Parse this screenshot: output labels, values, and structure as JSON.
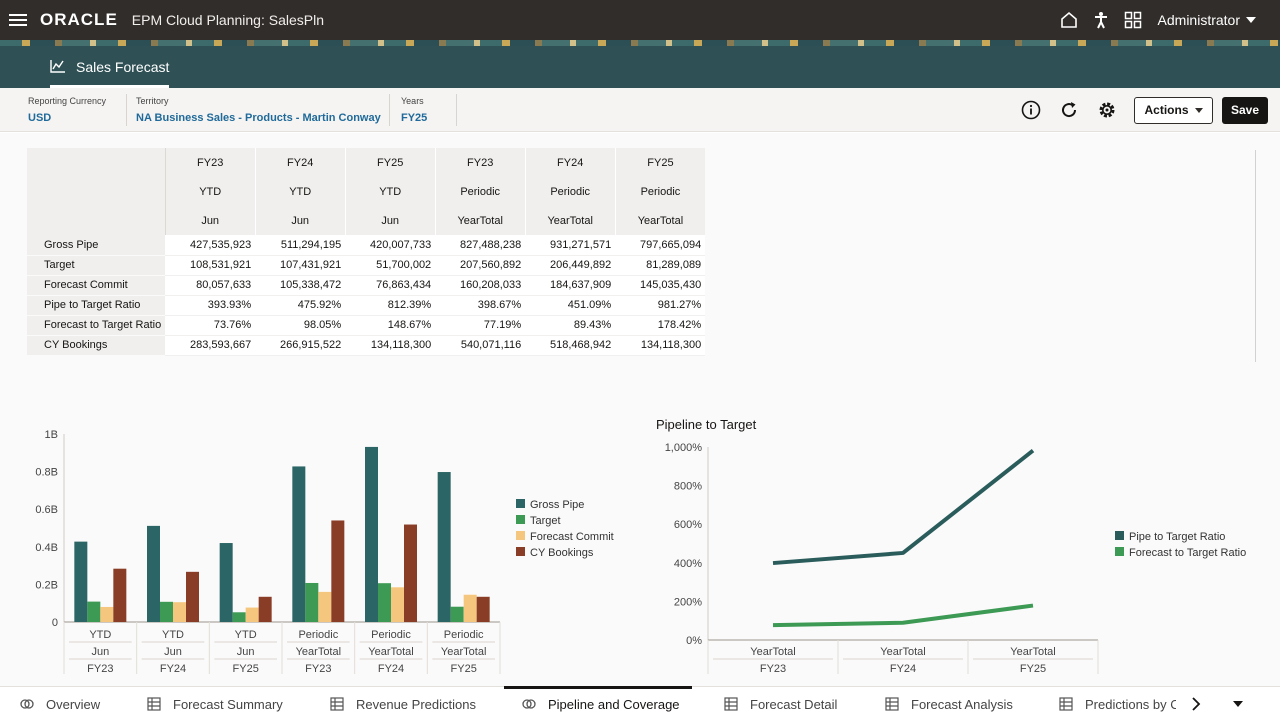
{
  "header": {
    "logo": "ORACLE",
    "app_title": "EPM Cloud Planning: SalesPln",
    "user": "Administrator"
  },
  "page_tab": {
    "label": "Sales Forecast",
    "icon": "chart-icon"
  },
  "pov": [
    {
      "label": "Reporting Currency",
      "value": "USD"
    },
    {
      "label": "Territory",
      "value": "NA Business Sales - Products - Martin Conway"
    },
    {
      "label": "Years",
      "value": "FY25"
    }
  ],
  "toolbar": {
    "actions_label": "Actions",
    "save_label": "Save"
  },
  "grid": {
    "col_headers": [
      [
        "FY23",
        "FY24",
        "FY25",
        "FY23",
        "FY24",
        "FY25"
      ],
      [
        "YTD",
        "YTD",
        "YTD",
        "Periodic",
        "Periodic",
        "Periodic"
      ],
      [
        "Jun",
        "Jun",
        "Jun",
        "YearTotal",
        "YearTotal",
        "YearTotal"
      ]
    ],
    "rows": [
      {
        "label": "Gross Pipe",
        "values": [
          "427,535,923",
          "511,294,195",
          "420,007,733",
          "827,488,238",
          "931,271,571",
          "797,665,094"
        ]
      },
      {
        "label": "Target",
        "values": [
          "108,531,921",
          "107,431,921",
          "51,700,002",
          "207,560,892",
          "206,449,892",
          "81,289,089"
        ]
      },
      {
        "label": "Forecast Commit",
        "values": [
          "80,057,633",
          "105,338,472",
          "76,863,434",
          "160,208,033",
          "184,637,909",
          "145,035,430"
        ]
      },
      {
        "label": "Pipe to Target Ratio",
        "values": [
          "393.93%",
          "475.92%",
          "812.39%",
          "398.67%",
          "451.09%",
          "981.27%"
        ]
      },
      {
        "label": "Forecast to Target Ratio",
        "values": [
          "73.76%",
          "98.05%",
          "148.67%",
          "77.19%",
          "89.43%",
          "178.42%"
        ]
      },
      {
        "label": "CY Bookings",
        "values": [
          "283,593,667",
          "266,915,522",
          "134,118,300",
          "540,071,116",
          "518,468,942",
          "134,118,300"
        ]
      }
    ]
  },
  "chart_data": [
    {
      "type": "bar",
      "title": "",
      "categories": [
        [
          "YTD",
          "Jun",
          "FY23"
        ],
        [
          "YTD",
          "Jun",
          "FY24"
        ],
        [
          "YTD",
          "Jun",
          "FY25"
        ],
        [
          "Periodic",
          "YearTotal",
          "FY23"
        ],
        [
          "Periodic",
          "YearTotal",
          "FY24"
        ],
        [
          "Periodic",
          "YearTotal",
          "FY25"
        ]
      ],
      "y_ticks": [
        "0",
        "0.2B",
        "0.4B",
        "0.6B",
        "0.8B",
        "1B"
      ],
      "ylim": [
        0,
        1000000000
      ],
      "legend_position": "right",
      "series": [
        {
          "name": "Gross Pipe",
          "color": "#2b6565",
          "values": [
            427535923,
            511294195,
            420007733,
            827488238,
            931271571,
            797665094
          ]
        },
        {
          "name": "Target",
          "color": "#3d9a55",
          "values": [
            108531921,
            107431921,
            51700002,
            207560892,
            206449892,
            81289089
          ]
        },
        {
          "name": "Forecast Commit",
          "color": "#f5c77e",
          "values": [
            80057633,
            105338472,
            76863434,
            160208033,
            184637909,
            145035430
          ]
        },
        {
          "name": "CY Bookings",
          "color": "#8a3d26",
          "values": [
            283593667,
            266915522,
            134118300,
            540071116,
            518468942,
            134118300
          ]
        }
      ]
    },
    {
      "type": "line",
      "title": "Pipeline to Target",
      "categories": [
        [
          "YearTotal",
          "FY23"
        ],
        [
          "YearTotal",
          "FY24"
        ],
        [
          "YearTotal",
          "FY25"
        ]
      ],
      "y_ticks": [
        "0%",
        "200%",
        "400%",
        "600%",
        "800%",
        "1,000%"
      ],
      "ylim": [
        0,
        1000
      ],
      "legend_position": "right",
      "series": [
        {
          "name": "Pipe to Target Ratio",
          "color": "#2b5c5c",
          "values": [
            398.67,
            451.09,
            981.27
          ]
        },
        {
          "name": "Forecast to Target Ratio",
          "color": "#3d9a55",
          "values": [
            77.19,
            89.43,
            178.42
          ]
        }
      ]
    }
  ],
  "bottom_tabs": [
    {
      "label": "Overview",
      "icon": "pipeline-icon"
    },
    {
      "label": "Forecast Summary",
      "icon": "form-icon"
    },
    {
      "label": "Revenue Predictions",
      "icon": "form-icon"
    },
    {
      "label": "Pipeline and Coverage",
      "icon": "pipeline-icon",
      "active": true
    },
    {
      "label": "Forecast Detail",
      "icon": "form-icon"
    },
    {
      "label": "Forecast Analysis",
      "icon": "form-icon"
    },
    {
      "label": "Predictions by C",
      "icon": "form-icon"
    }
  ]
}
